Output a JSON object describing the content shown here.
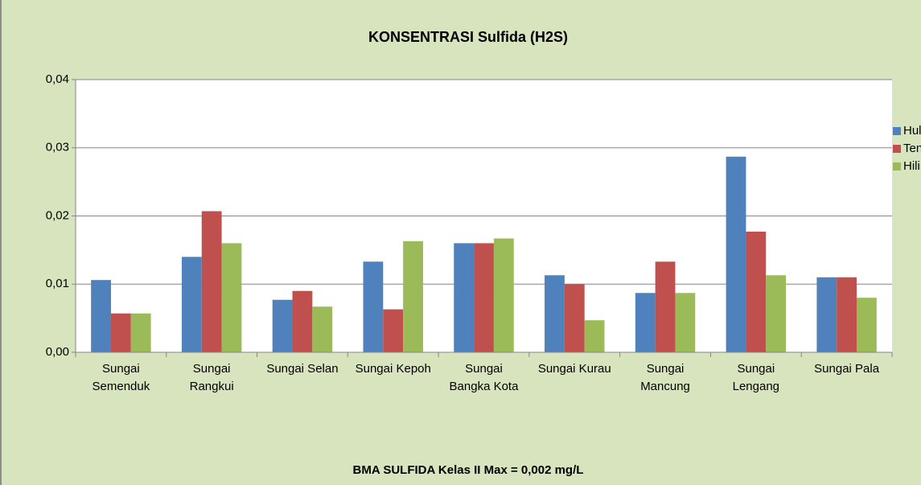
{
  "chart_data": {
    "type": "bar",
    "title": "KONSENTRASI  Sulfida (H2S)",
    "categories": [
      "Sungai Semenduk",
      "Sungai Rangkui",
      "Sungai Selan",
      "Sungai Kepoh",
      "Sungai Bangka Kota",
      "Sungai Kurau",
      "Sungai Mancung",
      "Sungai Lengang",
      "Sungai Pala"
    ],
    "series": [
      {
        "name": "Hulu",
        "color": "#4f81bd",
        "values": [
          0.0106,
          0.014,
          0.0077,
          0.0133,
          0.016,
          0.0113,
          0.0087,
          0.0287,
          0.011
        ]
      },
      {
        "name": "Tengah",
        "color": "#c0504d",
        "values": [
          0.0057,
          0.0207,
          0.009,
          0.0063,
          0.016,
          0.01,
          0.0133,
          0.0177,
          0.011
        ]
      },
      {
        "name": "Hilir",
        "color": "#9bbb59",
        "values": [
          0.0057,
          0.016,
          0.0067,
          0.0163,
          0.0167,
          0.0047,
          0.0087,
          0.0113,
          0.008
        ]
      }
    ],
    "ylim": [
      0,
      0.04
    ],
    "yticks": [
      {
        "value": 0,
        "label": "0,00"
      },
      {
        "value": 0.01,
        "label": "0,01"
      },
      {
        "value": 0.02,
        "label": "0,02"
      },
      {
        "value": 0.03,
        "label": "0,03"
      },
      {
        "value": 0.04,
        "label": "0,04"
      }
    ],
    "grid": true,
    "legend": "right",
    "note": "BMA  SULFIDA  Kelas II Max =  0,002 mg/L"
  }
}
